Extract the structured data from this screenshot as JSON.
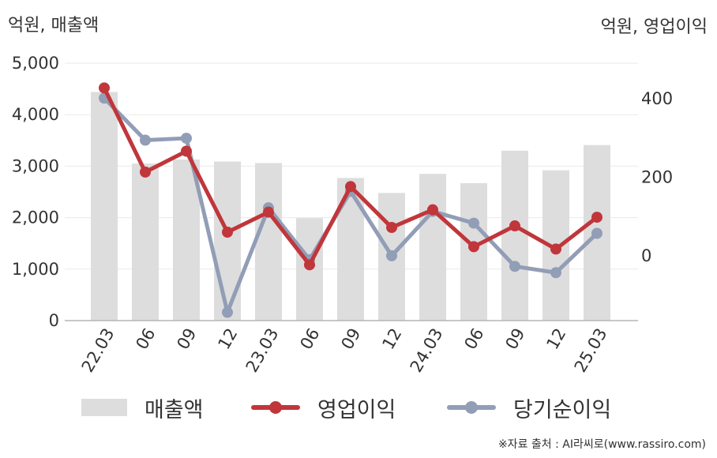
{
  "left_axis_unit": "억원, 매출액",
  "right_axis_unit": "억원, 영업이익",
  "source": "※자료 출처 : AI라씨로(www.rassiro.com)",
  "chart_data": {
    "type": "bar",
    "categories": [
      "22.03",
      "06",
      "09",
      "12",
      "23.03",
      "06",
      "09",
      "12",
      "24.03",
      "06",
      "09",
      "12",
      "25.03"
    ],
    "y_left": {
      "ylim": [
        0,
        5000
      ],
      "ticks": [
        "0",
        "1,000",
        "2,000",
        "3,000",
        "4,000",
        "5,000"
      ],
      "tick_values": [
        0,
        1000,
        2000,
        3000,
        4000,
        5000
      ]
    },
    "y_right": {
      "ylim": [
        -165,
        490
      ],
      "ticks": [
        "0",
        "200",
        "400"
      ],
      "tick_values": [
        0,
        200,
        400
      ]
    },
    "grid": true,
    "legend_placement": "bottom",
    "series": [
      {
        "name": "매출액",
        "type": "bar",
        "axis": "left",
        "color": "#dddddd",
        "values": [
          4440,
          3050,
          3130,
          3090,
          3060,
          1990,
          2770,
          2480,
          2850,
          2670,
          3300,
          2920,
          3410
        ]
      },
      {
        "name": "영업이익",
        "type": "line",
        "axis": "right",
        "color": "#c0363b",
        "values": [
          427,
          213,
          266,
          60,
          111,
          -23,
          176,
          72,
          117,
          23,
          76,
          17,
          98
        ]
      },
      {
        "name": "당기순이익",
        "type": "line",
        "axis": "right",
        "color": "#929db6",
        "values": [
          401,
          294,
          299,
          -144,
          122,
          -10,
          164,
          0,
          113,
          83,
          -27,
          -43,
          57
        ]
      }
    ]
  }
}
